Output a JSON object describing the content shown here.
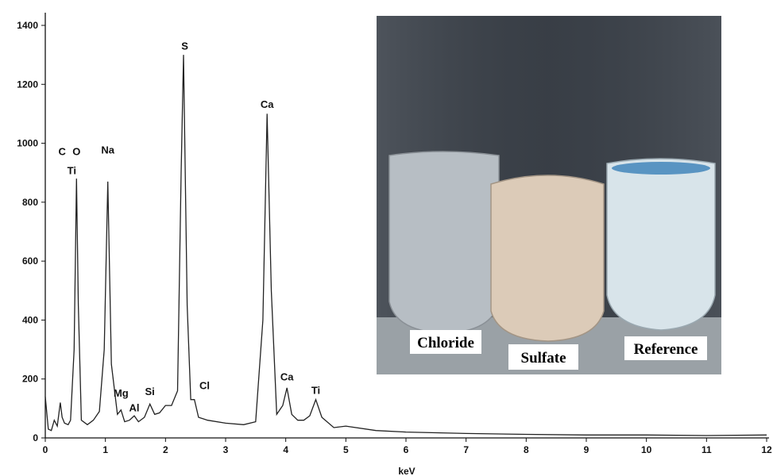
{
  "chart_data": {
    "type": "line",
    "title": "",
    "xlabel": "keV",
    "ylabel": "",
    "xlim": [
      0,
      12
    ],
    "ylim": [
      0,
      1400
    ],
    "x_ticks": [
      0,
      1,
      2,
      3,
      4,
      5,
      6,
      7,
      8,
      9,
      10,
      11,
      12
    ],
    "y_ticks": [
      0,
      200,
      400,
      600,
      800,
      1000,
      1200,
      1400
    ],
    "grid": false,
    "legend": "none",
    "series": [
      {
        "x": [
          0.0,
          0.05,
          0.1,
          0.15,
          0.2,
          0.25,
          0.28,
          0.32,
          0.38,
          0.42,
          0.48,
          0.52,
          0.55,
          0.6,
          0.7,
          0.8,
          0.9,
          0.98,
          1.04,
          1.1,
          1.2,
          1.26,
          1.32,
          1.4,
          1.48,
          1.55,
          1.65,
          1.74,
          1.82,
          1.9,
          2.0,
          2.1,
          2.2,
          2.26,
          2.3,
          2.36,
          2.42,
          2.48,
          2.55,
          2.7,
          3.0,
          3.3,
          3.5,
          3.62,
          3.69,
          3.76,
          3.85,
          3.95,
          4.02,
          4.1,
          4.2,
          4.3,
          4.4,
          4.5,
          4.6,
          4.8,
          5.0,
          5.5,
          6.0,
          7.0,
          8.0,
          9.0,
          10.0,
          11.0,
          12.0
        ],
        "y": [
          140,
          30,
          25,
          60,
          40,
          120,
          70,
          50,
          45,
          60,
          300,
          880,
          450,
          60,
          45,
          60,
          90,
          300,
          870,
          250,
          80,
          95,
          55,
          60,
          75,
          55,
          70,
          115,
          80,
          85,
          110,
          110,
          160,
          900,
          1300,
          450,
          130,
          130,
          70,
          60,
          50,
          45,
          55,
          400,
          1100,
          500,
          80,
          110,
          170,
          80,
          60,
          60,
          75,
          130,
          70,
          35,
          40,
          25,
          20,
          15,
          12,
          10,
          10,
          8,
          10
        ]
      }
    ],
    "annotations": [
      {
        "text": "C",
        "x": 0.28,
        "y": 960
      },
      {
        "text": "O",
        "x": 0.52,
        "y": 960
      },
      {
        "text": "Ti",
        "x": 0.44,
        "y": 895
      },
      {
        "text": "Na",
        "x": 1.04,
        "y": 965
      },
      {
        "text": "Mg",
        "x": 1.26,
        "y": 140
      },
      {
        "text": "Al",
        "x": 1.48,
        "y": 90
      },
      {
        "text": "Si",
        "x": 1.74,
        "y": 145
      },
      {
        "text": "S",
        "x": 2.32,
        "y": 1318
      },
      {
        "text": "Cl",
        "x": 2.65,
        "y": 165
      },
      {
        "text": "Ca",
        "x": 3.69,
        "y": 1120
      },
      {
        "text": "Ca",
        "x": 4.02,
        "y": 195
      },
      {
        "text": "Ti",
        "x": 4.5,
        "y": 150
      }
    ]
  },
  "inset_photo": {
    "vial_labels": [
      "Chloride",
      "Sulfate",
      "Reference"
    ],
    "colors": {
      "chloride_fill": "#b7bec4",
      "sulfate_fill": "#dccbb8",
      "reference_fill": "#d8e4ea",
      "backdrop": "#3b4149"
    }
  }
}
